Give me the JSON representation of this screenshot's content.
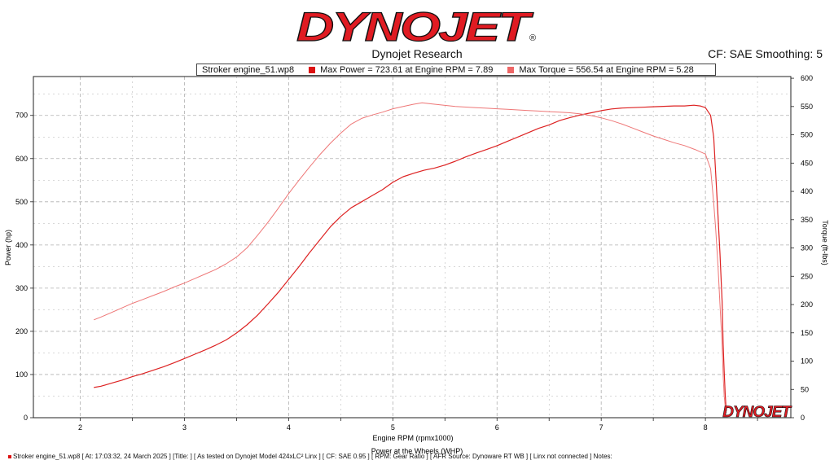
{
  "header": {
    "logo_text": "DYNOJET",
    "logo_mark": "®",
    "subtitle": "Dynojet Research",
    "cf_smoothing": "CF: SAE Smoothing: 5"
  },
  "legend": {
    "run_name": "Stroker engine_51.wp8",
    "max_power": "Max Power = 723.61 at Engine RPM = 7.89",
    "max_torque": "Max Torque = 556.54 at Engine RPM = 5.28"
  },
  "footer": {
    "text": "Stroker engine_51.wp8 [ At: 17:03:32, 24 March 2025 ] [Title: ]  [ As tested on Dynojet Model 424xLC² Linx ] [ CF: SAE 0.95 ] [ RPM: Gear Ratio ] [ AFR Source: Dynoware RT WB ] [ Linx not connected ] Notes:"
  },
  "watermark": "DYNOJET",
  "colors": {
    "brand": "#e01b22",
    "power": "#dd2222",
    "torque": "#ee7777",
    "grid": "#b0b0b0"
  },
  "chart_data": {
    "type": "line",
    "xlabel": "Engine RPM (rpmx1000)",
    "x_caption": "Power at the Wheels (WHP)",
    "ylabel_left": "Power (hp)",
    "ylabel_right": "Torque (ft-lbs)",
    "xlim": [
      1.55,
      8.82
    ],
    "ylim_left": [
      0,
      790
    ],
    "ylim_right": [
      0,
      603
    ],
    "x_ticks": [
      2,
      3,
      4,
      5,
      6,
      7,
      8
    ],
    "y_left_ticks": [
      0,
      100,
      200,
      300,
      400,
      500,
      600,
      700
    ],
    "y_right_ticks": [
      0,
      50,
      100,
      150,
      200,
      250,
      300,
      350,
      400,
      450,
      500,
      550,
      600
    ],
    "grid": true,
    "series": [
      {
        "name": "Max Power",
        "axis": "left",
        "x": [
          2.13,
          2.2,
          2.3,
          2.4,
          2.5,
          2.6,
          2.7,
          2.8,
          2.9,
          3.0,
          3.1,
          3.2,
          3.3,
          3.4,
          3.5,
          3.6,
          3.7,
          3.8,
          3.9,
          4.0,
          4.1,
          4.2,
          4.3,
          4.4,
          4.5,
          4.6,
          4.7,
          4.8,
          4.9,
          5.0,
          5.1,
          5.2,
          5.3,
          5.4,
          5.5,
          5.6,
          5.7,
          5.8,
          5.9,
          6.0,
          6.1,
          6.2,
          6.3,
          6.4,
          6.5,
          6.6,
          6.7,
          6.8,
          6.9,
          7.0,
          7.1,
          7.2,
          7.3,
          7.4,
          7.5,
          7.6,
          7.7,
          7.8,
          7.89,
          7.95,
          8.0,
          8.05,
          8.08,
          8.1,
          8.12,
          8.14,
          8.16,
          8.17,
          8.18,
          8.19,
          8.2
        ],
        "values": [
          70,
          73,
          80,
          87,
          95,
          102,
          110,
          118,
          127,
          137,
          147,
          157,
          168,
          180,
          196,
          215,
          237,
          263,
          290,
          320,
          350,
          382,
          412,
          442,
          466,
          486,
          500,
          514,
          528,
          545,
          558,
          566,
          573,
          578,
          585,
          594,
          604,
          613,
          621,
          630,
          640,
          650,
          660,
          670,
          678,
          688,
          695,
          701,
          706,
          711,
          715,
          717,
          718,
          719,
          720,
          721,
          722,
          722,
          723.6,
          722,
          718,
          700,
          650,
          560,
          470,
          380,
          270,
          170,
          110,
          55,
          15
        ]
      },
      {
        "name": "Max Torque",
        "axis": "right",
        "x": [
          2.13,
          2.2,
          2.3,
          2.4,
          2.5,
          2.6,
          2.7,
          2.8,
          2.9,
          3.0,
          3.1,
          3.2,
          3.3,
          3.4,
          3.5,
          3.6,
          3.7,
          3.8,
          3.9,
          4.0,
          4.1,
          4.2,
          4.3,
          4.4,
          4.5,
          4.6,
          4.7,
          4.8,
          4.9,
          5.0,
          5.1,
          5.2,
          5.28,
          5.4,
          5.5,
          5.6,
          5.7,
          5.8,
          5.9,
          6.0,
          6.1,
          6.2,
          6.3,
          6.4,
          6.5,
          6.6,
          6.7,
          6.8,
          6.9,
          7.0,
          7.1,
          7.2,
          7.3,
          7.4,
          7.5,
          7.6,
          7.7,
          7.8,
          7.9,
          8.0,
          8.05,
          8.08,
          8.1,
          8.12,
          8.14,
          8.16,
          8.17,
          8.18,
          8.19,
          8.2
        ],
        "values": [
          173,
          178,
          186,
          194,
          202,
          209,
          216,
          223,
          231,
          238,
          246,
          254,
          262,
          272,
          284,
          300,
          322,
          345,
          370,
          396,
          420,
          443,
          465,
          485,
          503,
          519,
          529,
          535,
          540,
          546,
          550,
          554,
          556.5,
          554,
          552,
          550,
          549,
          548,
          547,
          546,
          545,
          544,
          543,
          542,
          541,
          540,
          539,
          537,
          534,
          530,
          525,
          519,
          512,
          505,
          498,
          492,
          486,
          481,
          474,
          466,
          440,
          380,
          330,
          270,
          200,
          130,
          75,
          40,
          20,
          8
        ]
      }
    ]
  }
}
